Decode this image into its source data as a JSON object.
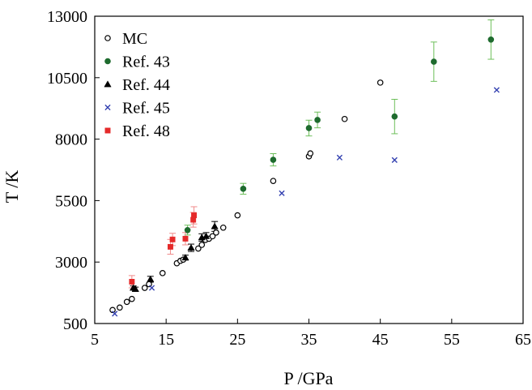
{
  "chart_data": {
    "type": "scatter",
    "title": "",
    "xlabel": "P /GPa",
    "ylabel": "T /K",
    "xlim": [
      5,
      65
    ],
    "ylim": [
      500,
      13000
    ],
    "xticks": [
      5,
      15,
      25,
      35,
      45,
      55,
      65
    ],
    "yticks": [
      500,
      3000,
      5500,
      8000,
      10500,
      13000
    ],
    "xtick_labels": [
      "5",
      "15",
      "25",
      "35",
      "45",
      "55",
      "65"
    ],
    "ytick_labels": [
      "500",
      "3000",
      "5500",
      "8000",
      "10500",
      "13000"
    ],
    "grid": false,
    "legend_position": "top-left",
    "series": [
      {
        "name": "MC",
        "marker": "open-circle",
        "color": "#000000",
        "points": [
          {
            "x": 7.5,
            "y": 1050
          },
          {
            "x": 8.5,
            "y": 1150
          },
          {
            "x": 9.5,
            "y": 1380
          },
          {
            "x": 10.2,
            "y": 1500
          },
          {
            "x": 12.0,
            "y": 1950
          },
          {
            "x": 12.6,
            "y": 2100
          },
          {
            "x": 14.5,
            "y": 2550
          },
          {
            "x": 16.5,
            "y": 2950
          },
          {
            "x": 17.0,
            "y": 3050
          },
          {
            "x": 17.4,
            "y": 3100
          },
          {
            "x": 19.5,
            "y": 3550
          },
          {
            "x": 20.0,
            "y": 3700
          },
          {
            "x": 20.5,
            "y": 3900
          },
          {
            "x": 21.0,
            "y": 3950
          },
          {
            "x": 21.5,
            "y": 4050
          },
          {
            "x": 22.0,
            "y": 4200
          },
          {
            "x": 23.0,
            "y": 4400
          },
          {
            "x": 25.0,
            "y": 4900
          },
          {
            "x": 30.0,
            "y": 6300
          },
          {
            "x": 35.0,
            "y": 7300
          },
          {
            "x": 35.2,
            "y": 7420
          },
          {
            "x": 40.0,
            "y": 8820
          },
          {
            "x": 45.0,
            "y": 10300
          }
        ]
      },
      {
        "name": "Ref. 43",
        "marker": "filled-circle",
        "color": "#1e6b2e",
        "error_color": "#6dbf5a",
        "points": [
          {
            "x": 18.0,
            "y": 4300,
            "err": 200
          },
          {
            "x": 25.8,
            "y": 5980,
            "err": 220
          },
          {
            "x": 30.0,
            "y": 7160,
            "err": 250
          },
          {
            "x": 35.0,
            "y": 8450,
            "err": 320
          },
          {
            "x": 36.2,
            "y": 8780,
            "err": 320
          },
          {
            "x": 47.0,
            "y": 8920,
            "err": 700
          },
          {
            "x": 52.5,
            "y": 11150,
            "err": 800
          },
          {
            "x": 60.5,
            "y": 12050,
            "err": 800
          }
        ]
      },
      {
        "name": "Ref. 44",
        "marker": "filled-triangle",
        "color": "#000000",
        "points": [
          {
            "x": 10.4,
            "y": 1950,
            "err": 80
          },
          {
            "x": 10.7,
            "y": 1900,
            "err": 80
          },
          {
            "x": 12.8,
            "y": 2300,
            "err": 120
          },
          {
            "x": 17.7,
            "y": 3180,
            "err": 100
          },
          {
            "x": 18.5,
            "y": 3580,
            "err": 150
          },
          {
            "x": 20.0,
            "y": 4000,
            "err": 150
          },
          {
            "x": 20.6,
            "y": 4050,
            "err": 150
          },
          {
            "x": 21.8,
            "y": 4450,
            "err": 200
          }
        ]
      },
      {
        "name": "Ref. 45",
        "marker": "x-cross",
        "color": "#3340b0",
        "points": [
          {
            "x": 7.8,
            "y": 900
          },
          {
            "x": 13.0,
            "y": 1950
          },
          {
            "x": 31.2,
            "y": 5800
          },
          {
            "x": 39.3,
            "y": 7250
          },
          {
            "x": 47.0,
            "y": 7150
          },
          {
            "x": 61.3,
            "y": 10000
          }
        ]
      },
      {
        "name": "Ref. 48",
        "marker": "filled-square",
        "color": "#e52a2a",
        "error_color": "#f08a8a",
        "points": [
          {
            "x": 10.2,
            "y": 2200,
            "err": 250
          },
          {
            "x": 15.6,
            "y": 3620,
            "err": 300
          },
          {
            "x": 15.9,
            "y": 3920,
            "err": 250
          },
          {
            "x": 17.7,
            "y": 3950,
            "err": 250
          },
          {
            "x": 18.8,
            "y": 4720,
            "err": 300
          },
          {
            "x": 18.9,
            "y": 4900,
            "err": 350
          }
        ]
      }
    ]
  }
}
